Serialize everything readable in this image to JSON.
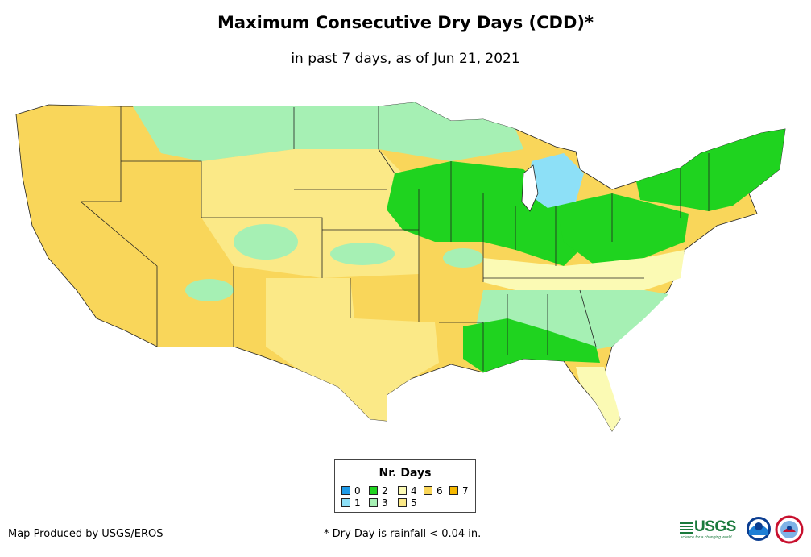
{
  "title": "Maximum Consecutive Dry Days (CDD)*",
  "subtitle": "in past 7 days, as of Jun 21, 2021",
  "legend": {
    "title": "Nr. Days",
    "items": [
      {
        "label": "0",
        "color": "#1e9be8"
      },
      {
        "label": "1",
        "color": "#8de0f7"
      },
      {
        "label": "2",
        "color": "#1fd31f"
      },
      {
        "label": "3",
        "color": "#a6f0b4"
      },
      {
        "label": "4",
        "color": "#fbfab4"
      },
      {
        "label": "5",
        "color": "#fbe987"
      },
      {
        "label": "6",
        "color": "#f9d65a"
      },
      {
        "label": "7",
        "color": "#f5b800"
      }
    ]
  },
  "footer": {
    "credit": "Map Produced by USGS/EROS",
    "note": "* Dry Day is rainfall < 0.04 in."
  },
  "logos": {
    "usgs": "USGS",
    "usgs_tagline": "science for a changing world",
    "noaa": "NOAA",
    "nws": "NWS"
  },
  "map": {
    "regions": [
      {
        "name": "west",
        "days": 6
      },
      {
        "name": "southwest",
        "days": 6
      },
      {
        "name": "texas",
        "days": 5
      },
      {
        "name": "northern-plains",
        "days": 5
      },
      {
        "name": "upper-midwest",
        "days": 3
      },
      {
        "name": "corn-belt",
        "days": 2
      },
      {
        "name": "ohio-valley",
        "days": 2
      },
      {
        "name": "southeast",
        "days": 3
      },
      {
        "name": "gulf-coast",
        "days": 2
      },
      {
        "name": "mid-atlantic",
        "days": 4
      },
      {
        "name": "new-england",
        "days": 2
      },
      {
        "name": "great-lakes",
        "days": 1
      },
      {
        "name": "florida",
        "days": 4
      }
    ]
  }
}
